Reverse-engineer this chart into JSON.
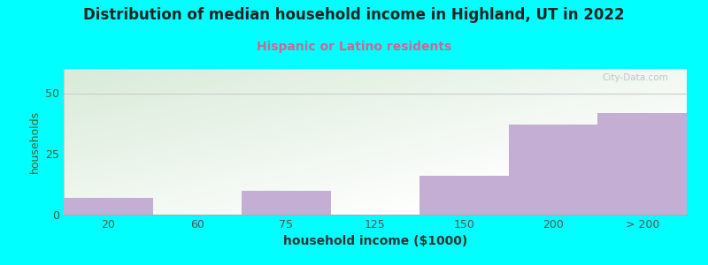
{
  "title": "Distribution of median household income in Highland, UT in 2022",
  "subtitle": "Hispanic or Latino residents",
  "xlabel": "household income ($1000)",
  "ylabel": "households",
  "categories": [
    "20",
    "60",
    "75",
    "125",
    "150",
    "200",
    "> 200"
  ],
  "values": [
    7,
    0,
    10,
    0,
    16,
    37,
    42
  ],
  "bar_color": "#c4aed4",
  "background_color": "#00ffff",
  "gradient_colors": [
    "#cceebb",
    "#f5fff5",
    "#fafafe"
  ],
  "title_fontsize": 12,
  "title_color": "#222222",
  "subtitle_fontsize": 10,
  "subtitle_color": "#cc6699",
  "ylabel_color": "#336633",
  "xlabel_color": "#333333",
  "tick_color": "#555555",
  "ylim": [
    0,
    60
  ],
  "yticks": [
    0,
    25,
    50
  ],
  "watermark": "City-Data.com"
}
